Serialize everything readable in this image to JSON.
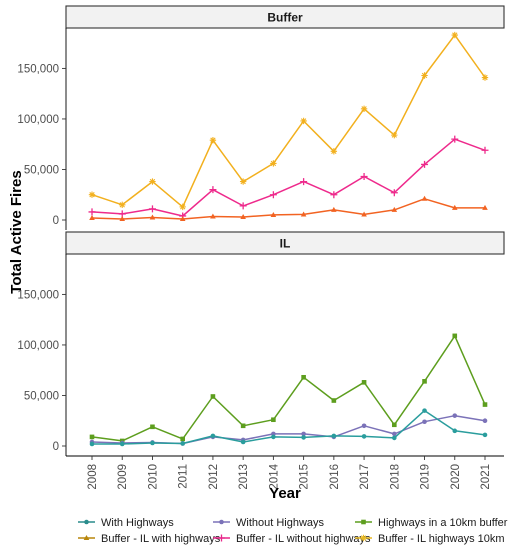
{
  "chart_data": {
    "type": "line",
    "ylabel": "Total Active Fires",
    "xlabel": "Year",
    "x": [
      2008,
      2009,
      2010,
      2011,
      2012,
      2013,
      2014,
      2015,
      2016,
      2017,
      2018,
      2019,
      2020,
      2021
    ],
    "ylim": [
      0,
      190000
    ],
    "yticks": [
      0,
      50000,
      100000,
      150000
    ],
    "ytick_labels": [
      "0",
      "50,000",
      "100,000",
      "150,000"
    ],
    "grid": false,
    "legend_position": "bottom",
    "legend": [
      {
        "name": "With Highways",
        "color": "#2a8c8c",
        "marker": "circle"
      },
      {
        "name": "Buffer - IL with highways",
        "color": "#b8860b",
        "marker": "triangle"
      },
      {
        "name": "Without Highways",
        "color": "#7b72b8",
        "marker": "circle"
      },
      {
        "name": "Buffer - IL without highways",
        "color": "#e8278a",
        "marker": "plus"
      },
      {
        "name": "Highways in a 10km buffer",
        "color": "#5d9e1e",
        "marker": "square"
      },
      {
        "name": "Buffer - IL highways 10km",
        "color": "#e8b923",
        "marker": "asterisk"
      }
    ],
    "panels": [
      {
        "title": "Buffer",
        "series": [
          {
            "name": "Buffer - IL highways 10km",
            "color": "#f2b01e",
            "marker": "asterisk",
            "values": [
              25000,
              15000,
              38000,
              13000,
              79000,
              38000,
              56000,
              98000,
              68000,
              110000,
              84000,
              143000,
              183000,
              141000
            ]
          },
          {
            "name": "Buffer - IL without highways",
            "color": "#ee2a8c",
            "marker": "plus",
            "values": [
              8000,
              6000,
              11000,
              4000,
              30000,
              14000,
              25000,
              38000,
              25000,
              43000,
              27000,
              55000,
              80000,
              69000
            ]
          },
          {
            "name": "Buffer - IL with highways",
            "color": "#f26322",
            "marker": "triangle",
            "values": [
              2000,
              1000,
              2500,
              1000,
              3500,
              3000,
              5000,
              5500,
              10000,
              5500,
              10000,
              21000,
              12000,
              12000
            ]
          }
        ]
      },
      {
        "title": "IL",
        "series": [
          {
            "name": "Highways in a 10km buffer",
            "color": "#5d9e1e",
            "marker": "square",
            "values": [
              9000,
              5000,
              19000,
              7000,
              49000,
              20000,
              26000,
              68000,
              45000,
              63000,
              21000,
              64000,
              109000,
              41000
            ]
          },
          {
            "name": "Without Highways",
            "color": "#7b72b8",
            "marker": "circle",
            "values": [
              4000,
              3000,
              3500,
              2500,
              9000,
              6000,
              12000,
              12000,
              9000,
              20000,
              12000,
              24000,
              30000,
              25000
            ]
          },
          {
            "name": "With Highways",
            "color": "#2a9d9d",
            "marker": "circle",
            "values": [
              2000,
              2000,
              3000,
              2500,
              10000,
              4000,
              9000,
              8500,
              10000,
              9500,
              8000,
              35000,
              15000,
              11000
            ]
          }
        ]
      }
    ]
  }
}
